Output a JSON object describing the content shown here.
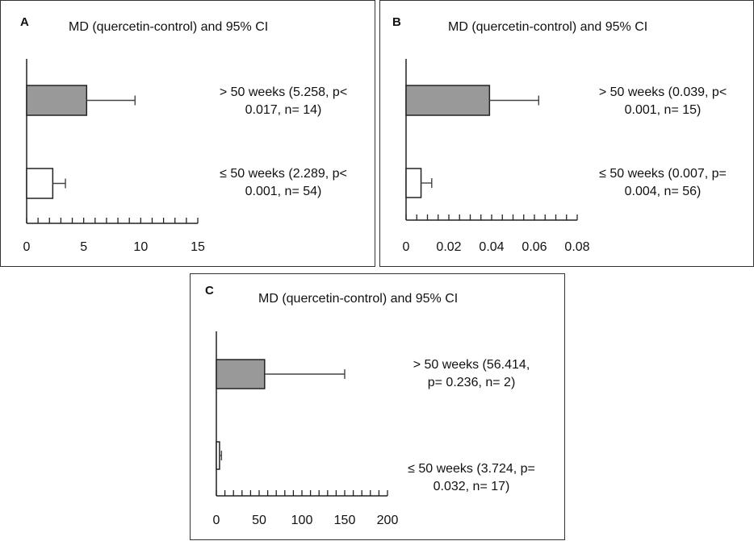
{
  "chart_data": [
    {
      "type": "bar",
      "orientation": "horizontal",
      "panel": "A",
      "title": "MD (quercetin-control) and 95% CI",
      "categories": [
        {
          "label_lines": [
            "> 50 weeks (5.258, p<",
            "0.017, n= 14)"
          ],
          "value": 5.258,
          "ci_upper": 9.5,
          "fill": "#999999"
        },
        {
          "label_lines": [
            "≤ 50 weeks (2.289, p<",
            "0.001, n= 54)"
          ],
          "value": 2.289,
          "ci_upper": 3.4,
          "fill": "#ffffff"
        }
      ],
      "xlim": [
        0,
        15
      ],
      "xticks": [
        0,
        5,
        10,
        15
      ],
      "xtick_labels": [
        "0",
        "5",
        "10",
        "15"
      ],
      "minor_ticks_per_major": 5
    },
    {
      "type": "bar",
      "orientation": "horizontal",
      "panel": "B",
      "title": "MD (quercetin-control) and 95% CI",
      "categories": [
        {
          "label_lines": [
            "> 50 weeks (0.039, p<",
            "0.001, n= 15)"
          ],
          "value": 0.039,
          "ci_upper": 0.062,
          "fill": "#999999"
        },
        {
          "label_lines": [
            "≤ 50 weeks (0.007, p=",
            "0.004, n= 56)"
          ],
          "value": 0.007,
          "ci_upper": 0.012,
          "fill": "#ffffff"
        }
      ],
      "xlim": [
        0,
        0.08
      ],
      "xticks": [
        0,
        0.02,
        0.04,
        0.06,
        0.08
      ],
      "xtick_labels": [
        "0",
        "0.02",
        "0.04",
        "0.06",
        "0.08"
      ],
      "minor_ticks_per_major": 4
    },
    {
      "type": "bar",
      "orientation": "horizontal",
      "panel": "C",
      "title": "MD (quercetin-control) and 95% CI",
      "categories": [
        {
          "label_lines": [
            "> 50 weeks (56.414,",
            "p= 0.236, n= 2)"
          ],
          "value": 56.414,
          "ci_upper": 150,
          "fill": "#999999"
        },
        {
          "label_lines": [
            "≤ 50 weeks (3.724, p=",
            "0.032, n= 17)"
          ],
          "value": 3.724,
          "ci_upper": 6,
          "fill": "#ffffff"
        }
      ],
      "xlim": [
        0,
        200
      ],
      "xticks": [
        0,
        50,
        100,
        150,
        200
      ],
      "xtick_labels": [
        "0",
        "50",
        "100",
        "150",
        "200"
      ],
      "minor_ticks_per_major": 5
    }
  ]
}
